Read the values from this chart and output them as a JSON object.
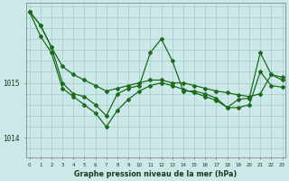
{
  "title": "Graphe pression niveau de la mer (hPa)",
  "background_color": "#cde8e8",
  "grid_color": "#aad0d0",
  "line_color": "#1a6b1a",
  "ylim": [
    1013.65,
    1016.45
  ],
  "yticks": [
    1014,
    1015
  ],
  "xlim": [
    -0.3,
    23.3
  ],
  "xticks": [
    0,
    1,
    2,
    3,
    4,
    5,
    6,
    7,
    8,
    9,
    10,
    11,
    12,
    13,
    14,
    15,
    16,
    17,
    18,
    19,
    20,
    21,
    22,
    23
  ],
  "s1": [
    1016.3,
    1016.05,
    1015.65,
    1015.3,
    1015.15,
    1015.05,
    1014.95,
    1014.85,
    1014.9,
    1014.95,
    1015.0,
    1015.05,
    1015.05,
    1015.0,
    1015.0,
    1014.95,
    1014.9,
    1014.85,
    1014.82,
    1014.78,
    1014.75,
    1014.8,
    1015.15,
    1015.1
  ],
  "s2": [
    1016.3,
    1016.05,
    1015.65,
    1015.0,
    1014.8,
    1014.75,
    1014.6,
    1014.4,
    1014.8,
    1014.9,
    1014.95,
    1015.55,
    1015.8,
    1015.4,
    1014.85,
    1014.85,
    1014.8,
    1014.72,
    1014.55,
    1014.7,
    1014.72,
    1015.55,
    1015.15,
    1015.05
  ],
  "s3": [
    1016.3,
    1015.85,
    1015.55,
    1014.9,
    1014.75,
    1014.6,
    1014.45,
    1014.2,
    1014.5,
    1014.7,
    1014.85,
    1014.95,
    1015.0,
    1014.95,
    1014.88,
    1014.82,
    1014.75,
    1014.68,
    1014.55,
    1014.55,
    1014.6,
    1015.2,
    1014.95,
    1014.92
  ]
}
